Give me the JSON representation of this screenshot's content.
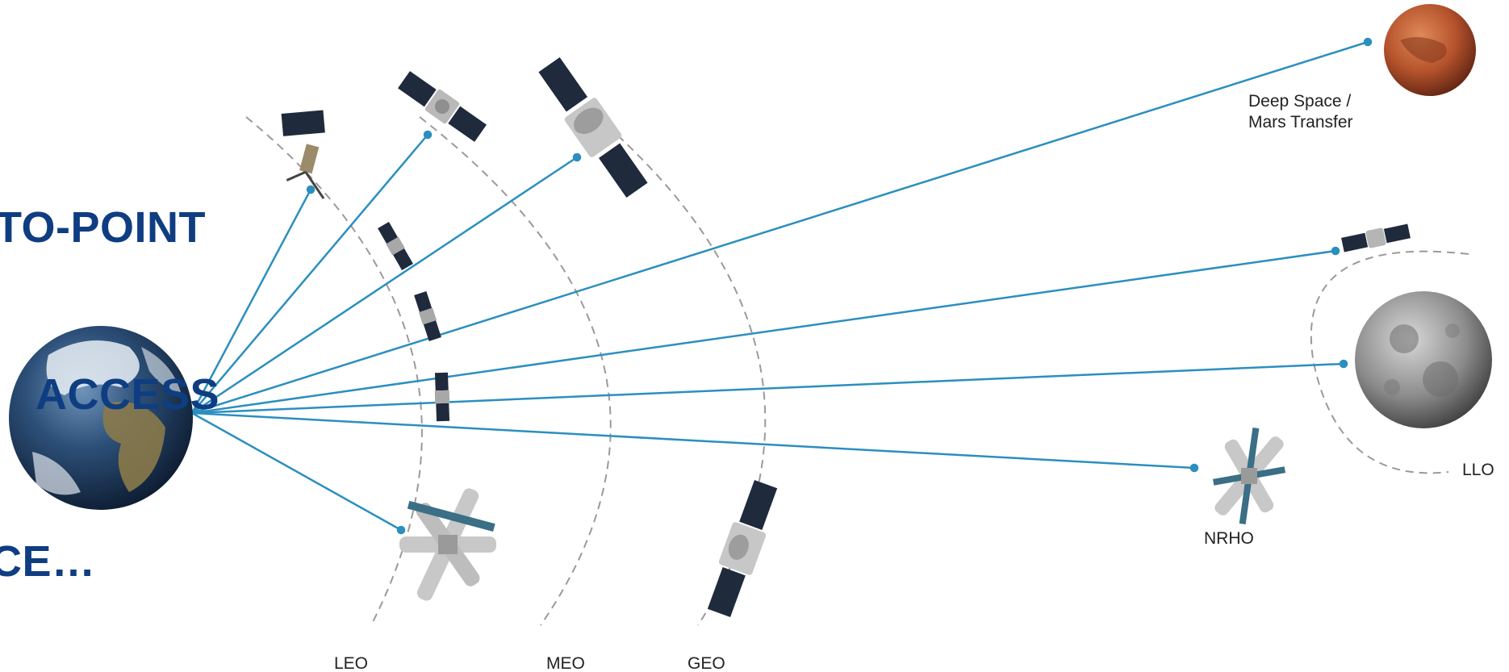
{
  "headline": {
    "lines": [
      "TO-POINT",
      "ACCESS",
      "CE…"
    ],
    "color": "#0f3d82"
  },
  "labels": {
    "deep_space_line1": "Deep Space /",
    "deep_space_line2": "Mars Transfer",
    "llo": "LLO",
    "nrho": "NRHO",
    "leo": "LEO",
    "meo": "MEO",
    "geo": "GEO"
  },
  "bodies": {
    "earth": "earth",
    "moon": "moon",
    "mars": "mars"
  },
  "colors": {
    "link_line": "#2b8fbf",
    "orbit_dash": "#9a9a9a",
    "label_text": "#222222"
  }
}
